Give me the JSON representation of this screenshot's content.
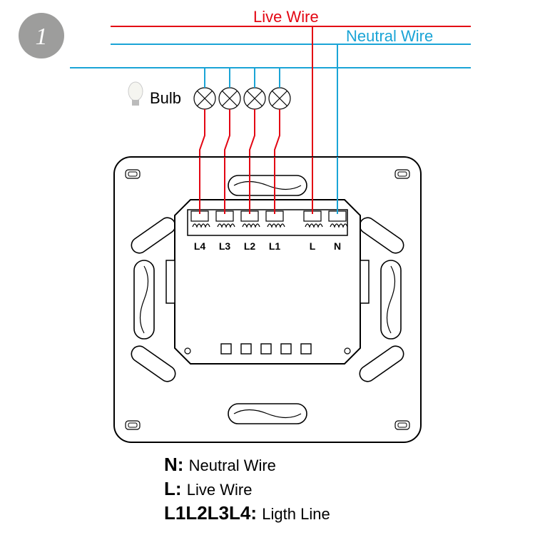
{
  "step_badge": "1",
  "labels": {
    "live_wire": "Live Wire",
    "neutral_wire": "Neutral Wire",
    "bulb": "Bulb"
  },
  "terminals": [
    "L4",
    "L3",
    "L2",
    "L1",
    "L",
    "N"
  ],
  "legend": [
    {
      "sym": "N",
      "desc": "Neutral Wire"
    },
    {
      "sym": "L",
      "desc": "Live Wire"
    },
    {
      "sym": "L1L2L3L4",
      "desc": "Ligth Line"
    }
  ],
  "colors": {
    "live": "#e30613",
    "neutral": "#1aa4d6",
    "outline": "#000000",
    "badge_bg": "#9d9d9c",
    "badge_fg": "#ffffff"
  },
  "wire_stroke": 2,
  "bulb_stroke": 1.2,
  "outline_stroke": 2
}
